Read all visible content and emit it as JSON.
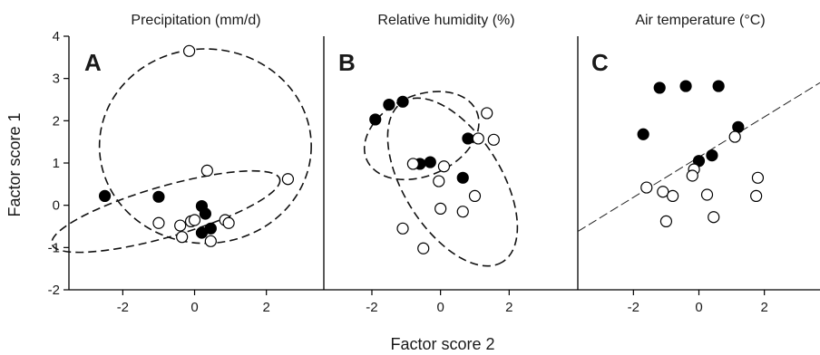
{
  "figure": {
    "y_axis_label": "Factor score 1",
    "x_axis_label": "Factor score 2"
  },
  "chart_data": [
    {
      "type": "scatter",
      "panel_letter": "A",
      "title": "Precipitation (mm/d)",
      "xlim": [
        -3.5,
        3.6
      ],
      "ylim": [
        -2,
        4
      ],
      "xticks": [
        "-2",
        "0",
        "2"
      ],
      "yticks": [
        "-2",
        "-1",
        "0",
        "1",
        "2",
        "3",
        "4"
      ],
      "series": [
        {
          "marker": "filled",
          "points": [
            [
              -2.5,
              0.22
            ],
            [
              -1.0,
              0.2
            ],
            [
              0.2,
              -0.02
            ],
            [
              0.3,
              -0.2
            ],
            [
              0.45,
              -0.55
            ],
            [
              0.2,
              -0.65
            ]
          ]
        },
        {
          "marker": "open",
          "points": [
            [
              -0.15,
              3.65
            ],
            [
              0.35,
              0.82
            ],
            [
              2.6,
              0.62
            ],
            [
              -1.0,
              -0.42
            ],
            [
              -0.4,
              -0.48
            ],
            [
              -0.1,
              -0.38
            ],
            [
              0.0,
              -0.35
            ],
            [
              0.85,
              -0.35
            ],
            [
              0.95,
              -0.42
            ],
            [
              -0.35,
              -0.75
            ],
            [
              0.45,
              -0.85
            ]
          ]
        }
      ],
      "ellipses": [
        {
          "cx": 0.3,
          "cy": 1.4,
          "rx": 2.95,
          "ry": 2.3,
          "angle_deg": 0
        },
        {
          "cx": -0.8,
          "cy": -0.15,
          "rx": 3.3,
          "ry": 0.6,
          "angle_deg": -16
        }
      ],
      "regression_line": null
    },
    {
      "type": "scatter",
      "panel_letter": "B",
      "title": "Relative humidity (%)",
      "xlim": [
        -3.4,
        4.0
      ],
      "ylim": [
        -2,
        4
      ],
      "xticks": [
        "-2",
        "0",
        "2"
      ],
      "series": [
        {
          "marker": "filled",
          "points": [
            [
              -1.9,
              2.03
            ],
            [
              -1.5,
              2.38
            ],
            [
              -1.1,
              2.45
            ],
            [
              -0.6,
              0.98
            ],
            [
              -0.3,
              1.02
            ],
            [
              0.8,
              1.58
            ],
            [
              0.65,
              0.65
            ]
          ]
        },
        {
          "marker": "open",
          "points": [
            [
              -0.8,
              0.98
            ],
            [
              0.1,
              0.92
            ],
            [
              -0.05,
              0.57
            ],
            [
              1.35,
              2.18
            ],
            [
              1.1,
              1.58
            ],
            [
              1.55,
              1.55
            ],
            [
              0.65,
              -0.15
            ],
            [
              1.0,
              0.22
            ],
            [
              0.0,
              -0.08
            ],
            [
              -1.1,
              -0.55
            ],
            [
              -0.5,
              -1.02
            ]
          ]
        }
      ],
      "ellipses": [
        {
          "cx": -0.55,
          "cy": 1.65,
          "rx": 1.75,
          "ry": 0.95,
          "angle_deg": -24
        },
        {
          "cx": 0.35,
          "cy": 0.55,
          "rx": 2.75,
          "ry": 1.15,
          "angle_deg": 58
        }
      ],
      "regression_line": null
    },
    {
      "type": "scatter",
      "panel_letter": "C",
      "title": "Air temperature (°C)",
      "xlim": [
        -3.7,
        3.7
      ],
      "ylim": [
        -2,
        4
      ],
      "xticks": [
        "-2",
        "0",
        "2"
      ],
      "series": [
        {
          "marker": "filled",
          "points": [
            [
              -1.2,
              2.78
            ],
            [
              -0.4,
              2.82
            ],
            [
              0.6,
              2.82
            ],
            [
              -1.7,
              1.68
            ],
            [
              0.0,
              1.05
            ],
            [
              0.4,
              1.18
            ],
            [
              1.2,
              1.85
            ]
          ]
        },
        {
          "marker": "open",
          "points": [
            [
              1.1,
              1.62
            ],
            [
              -0.15,
              0.85
            ],
            [
              -0.2,
              0.7
            ],
            [
              -1.6,
              0.42
            ],
            [
              -1.1,
              0.32
            ],
            [
              -0.8,
              0.22
            ],
            [
              0.25,
              0.25
            ],
            [
              1.8,
              0.65
            ],
            [
              1.75,
              0.22
            ],
            [
              -1.0,
              -0.38
            ],
            [
              0.45,
              -0.28
            ]
          ]
        }
      ],
      "ellipses": [],
      "regression_line": {
        "x": [
          -3.7,
          3.7
        ],
        "y": [
          -0.62,
          2.9
        ]
      }
    }
  ]
}
